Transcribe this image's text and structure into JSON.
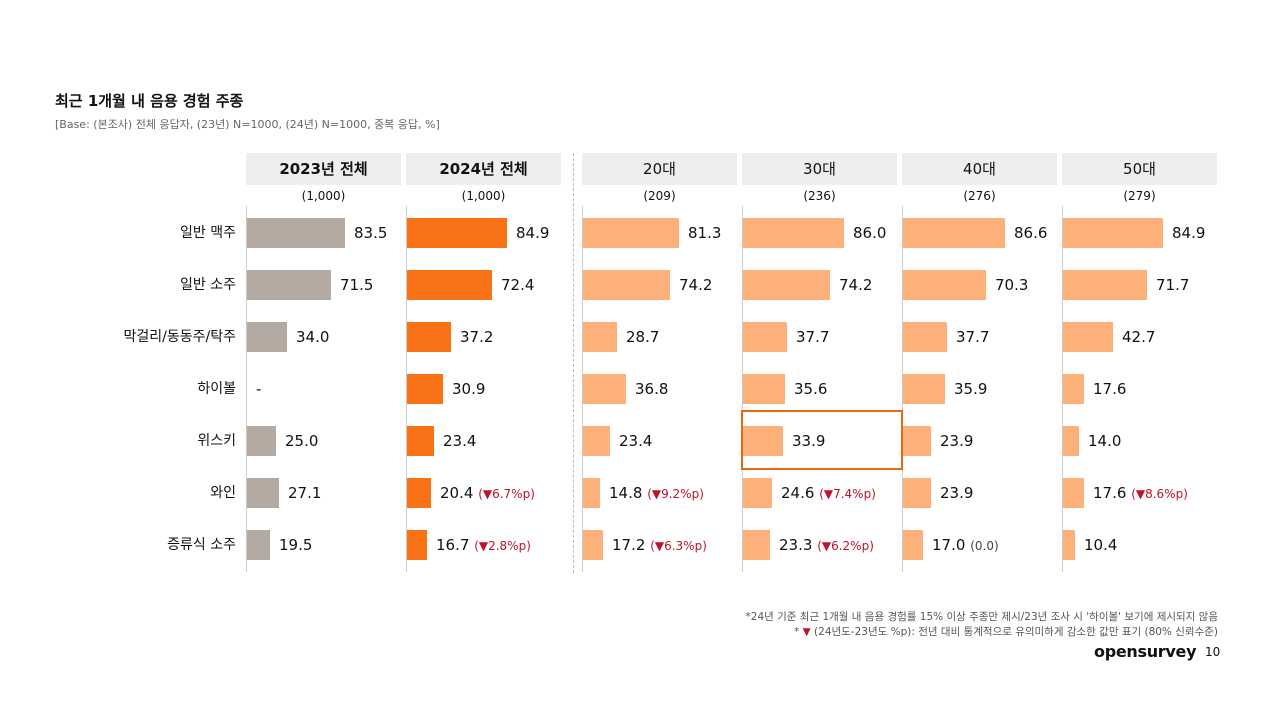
{
  "slide": {
    "title": "최근 1개월 내 음용 경험 주종",
    "subtitle": "[Base: (본조사) 전체 응답자, (23년) N=1000, (24년) N=1000, 중복 응답, %]",
    "footnote_1": "*24년 기준 최근 1개월 내 음용 경험률 15% 이상 주종만 제시/23년 조사 시 '하이볼' 보기에 제시되지 않음",
    "footnote_2_prefix": "* ",
    "footnote_2_marker": "▼",
    "footnote_2_text": " (24년도-23년도 %p): 전년 대비 통계적으로 유의미하게 감소한 값만 표기 (80% 신뢰수준)",
    "brand": "opensurvey",
    "page_number": "10"
  },
  "colors": {
    "gray": "#b5aaa1",
    "orange_dark": "#f97316",
    "orange_light": "#fdb07a",
    "decrease_red": "#c0122b",
    "highlight": "#e56a12"
  },
  "chart_data": {
    "type": "bar",
    "orientation": "horizontal",
    "title": "최근 1개월 내 음용 경험 주종",
    "unit": "%",
    "xlim": [
      0,
      100
    ],
    "categories": [
      "일반 맥주",
      "일반 소주",
      "막걸리/동동주/탁주",
      "하이볼",
      "위스키",
      "와인",
      "증류식 소주"
    ],
    "series": [
      {
        "name": "2023년 전체",
        "n": "(1,000)",
        "color": "gray",
        "bold": true,
        "values": [
          83.5,
          71.5,
          34.0,
          null,
          25.0,
          27.1,
          19.5
        ],
        "labels": [
          "83.5",
          "71.5",
          "34.0",
          "-",
          "25.0",
          "27.1",
          "19.5"
        ],
        "changes": [
          null,
          null,
          null,
          null,
          null,
          null,
          null
        ]
      },
      {
        "name": "2024년 전체",
        "n": "(1,000)",
        "color": "orange_dark",
        "bold": true,
        "values": [
          84.9,
          72.4,
          37.2,
          30.9,
          23.4,
          20.4,
          16.7
        ],
        "labels": [
          "84.9",
          "72.4",
          "37.2",
          "30.9",
          "23.4",
          "20.4",
          "16.7"
        ],
        "changes": [
          null,
          null,
          null,
          null,
          null,
          "(▼6.7%p)",
          "(▼2.8%p)"
        ]
      },
      {
        "name": "20대",
        "n": "(209)",
        "color": "orange_light",
        "bold": false,
        "values": [
          81.3,
          74.2,
          28.7,
          36.8,
          23.4,
          14.8,
          17.2
        ],
        "labels": [
          "81.3",
          "74.2",
          "28.7",
          "36.8",
          "23.4",
          "14.8",
          "17.2"
        ],
        "changes": [
          null,
          null,
          null,
          null,
          null,
          "(▼9.2%p)",
          "(▼6.3%p)"
        ]
      },
      {
        "name": "30대",
        "n": "(236)",
        "color": "orange_light",
        "bold": false,
        "values": [
          86.0,
          74.2,
          37.7,
          35.6,
          33.9,
          24.6,
          23.3
        ],
        "labels": [
          "86.0",
          "74.2",
          "37.7",
          "35.6",
          "33.9",
          "24.6",
          "23.3"
        ],
        "changes": [
          null,
          null,
          null,
          null,
          null,
          "(▼7.4%p)",
          "(▼6.2%p)"
        ]
      },
      {
        "name": "40대",
        "n": "(276)",
        "color": "orange_light",
        "bold": false,
        "values": [
          86.6,
          70.3,
          37.7,
          35.9,
          23.9,
          23.9,
          17.0
        ],
        "labels": [
          "86.6",
          "70.3",
          "37.7",
          "35.9",
          "23.9",
          "23.9",
          "17.0"
        ],
        "changes": [
          null,
          null,
          null,
          null,
          null,
          null,
          "(0.0)"
        ]
      },
      {
        "name": "50대",
        "n": "(279)",
        "color": "orange_light",
        "bold": false,
        "values": [
          84.9,
          71.7,
          42.7,
          17.6,
          14.0,
          17.6,
          10.4
        ],
        "labels": [
          "84.9",
          "71.7",
          "42.7",
          "17.6",
          "14.0",
          "17.6",
          "10.4"
        ],
        "changes": [
          null,
          null,
          null,
          null,
          null,
          "(▼8.6%p)",
          null
        ]
      }
    ],
    "highlight": {
      "series": "30대",
      "category": "위스키"
    }
  }
}
